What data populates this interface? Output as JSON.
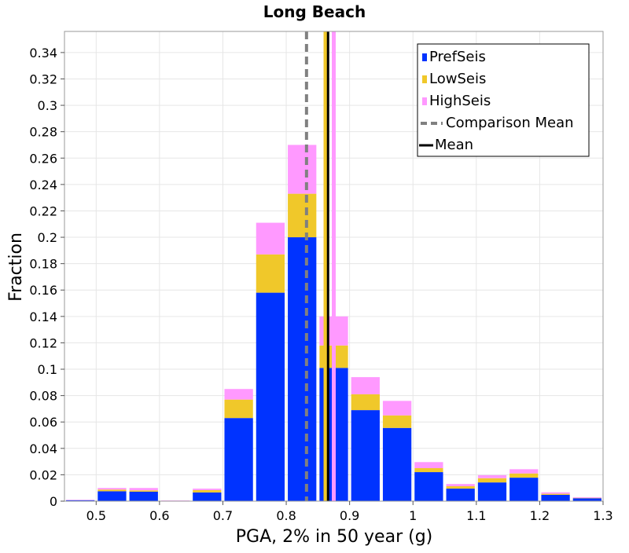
{
  "chart_data": {
    "type": "bar",
    "title": "Long Beach",
    "xlabel": "PGA, 2% in 50 year (g)",
    "ylabel": "Fraction",
    "xlim": [
      0.45,
      1.3
    ],
    "ylim": [
      0,
      0.356
    ],
    "grid": true,
    "legend_position": "top-right",
    "bin_width": 0.05,
    "x_ticks": [
      "0.5",
      "0.6",
      "0.7",
      "0.8",
      "0.9",
      "1",
      "1.1",
      "1.2",
      "1.3"
    ],
    "y_ticks": [
      "0",
      "0.02",
      "0.04",
      "0.06",
      "0.08",
      "0.1",
      "0.12",
      "0.14",
      "0.16",
      "0.18",
      "0.2",
      "0.22",
      "0.24",
      "0.26",
      "0.28",
      "0.3",
      "0.32",
      "0.34"
    ],
    "bin_centers": [
      0.475,
      0.525,
      0.575,
      0.625,
      0.675,
      0.725,
      0.775,
      0.825,
      0.875,
      0.925,
      0.975,
      1.025,
      1.075,
      1.125,
      1.175,
      1.225,
      1.275
    ],
    "series": [
      {
        "name": "PrefSeis",
        "color": "#0033ff",
        "values": [
          0.0008,
          0.0075,
          0.0072,
          0.0,
          0.0066,
          0.063,
          0.158,
          0.2,
          0.101,
          0.069,
          0.0555,
          0.022,
          0.0095,
          0.0142,
          0.0178,
          0.0048,
          0.0022
        ]
      },
      {
        "name": "LowSeis",
        "color": "#f0c82a",
        "values": [
          0.0,
          0.0013,
          0.001,
          0.0,
          0.0018,
          0.014,
          0.029,
          0.033,
          0.017,
          0.012,
          0.0095,
          0.003,
          0.0018,
          0.0032,
          0.0032,
          0.0008,
          0.0003
        ]
      },
      {
        "name": "HighSeis",
        "color": "#ff99ff",
        "values": [
          0.0002,
          0.0012,
          0.0018,
          0.0005,
          0.0011,
          0.008,
          0.024,
          0.037,
          0.022,
          0.013,
          0.011,
          0.0046,
          0.0017,
          0.0023,
          0.0032,
          0.0011,
          0.0005
        ]
      }
    ],
    "lines": [
      {
        "name": "Comparison Mean",
        "x": 0.832,
        "color": "#808080",
        "style": "dashed"
      },
      {
        "name": "Mean",
        "x": 0.866,
        "color": "#000000",
        "style": "solid"
      }
    ],
    "marker_lines": [
      {
        "x": 0.862,
        "color": "#f0c82a"
      },
      {
        "x": 0.875,
        "color": "#ff99ff"
      }
    ]
  }
}
